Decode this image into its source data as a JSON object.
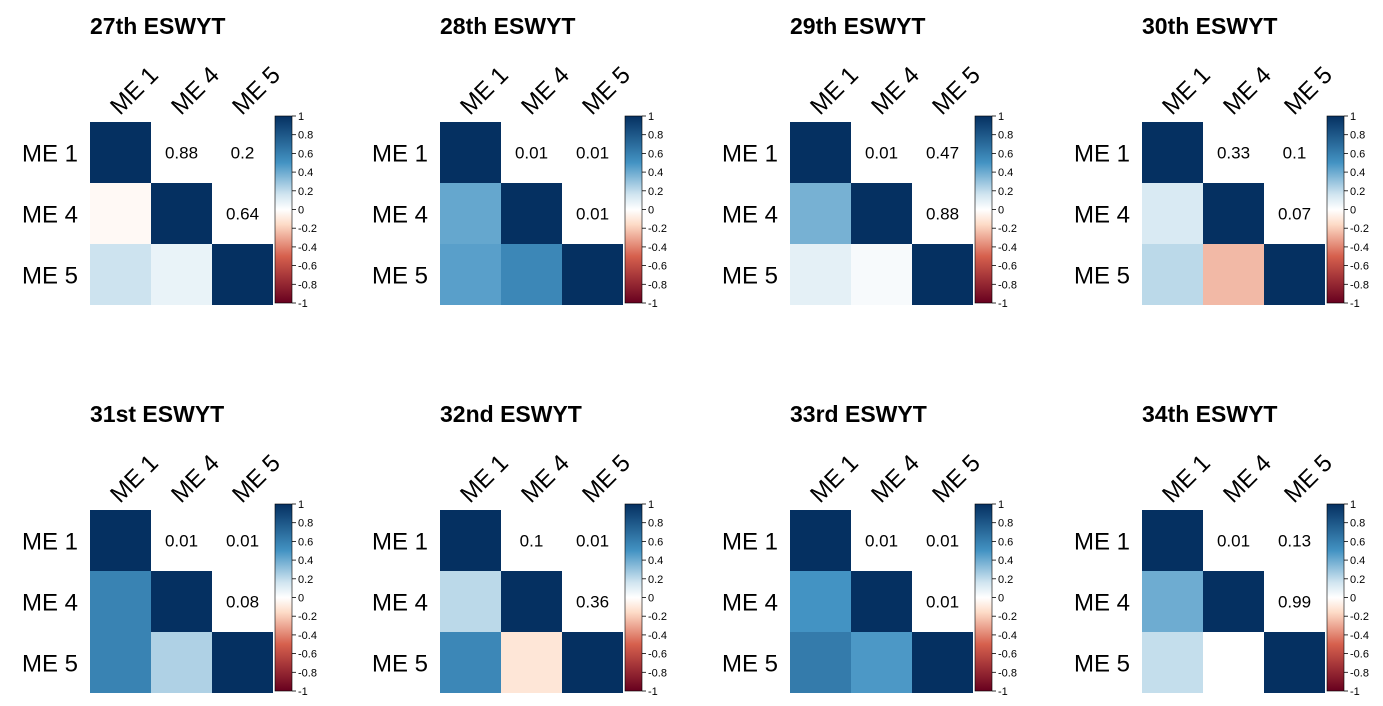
{
  "chart_data": {
    "type": "heatmap",
    "variables": [
      "ME 1",
      "ME 4",
      "ME 5"
    ],
    "colorbar": {
      "range": [
        -1,
        1
      ],
      "ticks": [
        "1",
        "0.8",
        "0.6",
        "0.4",
        "0.2",
        "0",
        "-0.2",
        "-0.4",
        "-0.6",
        "-0.8",
        "-1"
      ],
      "colors": {
        "neg_end": "#67001f",
        "neg_mid": "#d6604d",
        "neg_light": "#fddbc7",
        "zero": "#ffffff",
        "pos_light": "#d1e5f0",
        "pos_mid": "#4393c3",
        "pos_end": "#053061"
      }
    },
    "panels": [
      {
        "title": "27th ESWYT",
        "upper_labels": [
          "0.88",
          "0.2",
          "0.64"
        ],
        "lower_values": [
          -0.03,
          0.18,
          0.08
        ]
      },
      {
        "title": "28th ESWYT",
        "upper_labels": [
          "0.01",
          "0.01",
          "0.01"
        ],
        "lower_values": [
          0.42,
          0.45,
          0.56
        ]
      },
      {
        "title": "29th ESWYT",
        "upper_labels": [
          "0.01",
          "0.47",
          "0.88"
        ],
        "lower_values": [
          0.38,
          0.1,
          0.03
        ]
      },
      {
        "title": "30th ESWYT",
        "upper_labels": [
          "0.33",
          "0.1",
          "0.07"
        ],
        "lower_values": [
          0.14,
          0.22,
          -0.26
        ]
      },
      {
        "title": "31st ESWYT",
        "upper_labels": [
          "0.01",
          "0.01",
          "0.08"
        ],
        "lower_values": [
          0.58,
          0.58,
          0.25
        ]
      },
      {
        "title": "32nd ESWYT",
        "upper_labels": [
          "0.1",
          "0.01",
          "0.36"
        ],
        "lower_values": [
          0.22,
          0.56,
          -0.12
        ]
      },
      {
        "title": "33rd ESWYT",
        "upper_labels": [
          "0.01",
          "0.01",
          "0.01"
        ],
        "lower_values": [
          0.5,
          0.62,
          0.48
        ]
      },
      {
        "title": "34th ESWYT",
        "upper_labels": [
          "0.01",
          "0.13",
          "0.99"
        ],
        "lower_values": [
          0.4,
          0.2,
          0.0
        ]
      }
    ]
  }
}
